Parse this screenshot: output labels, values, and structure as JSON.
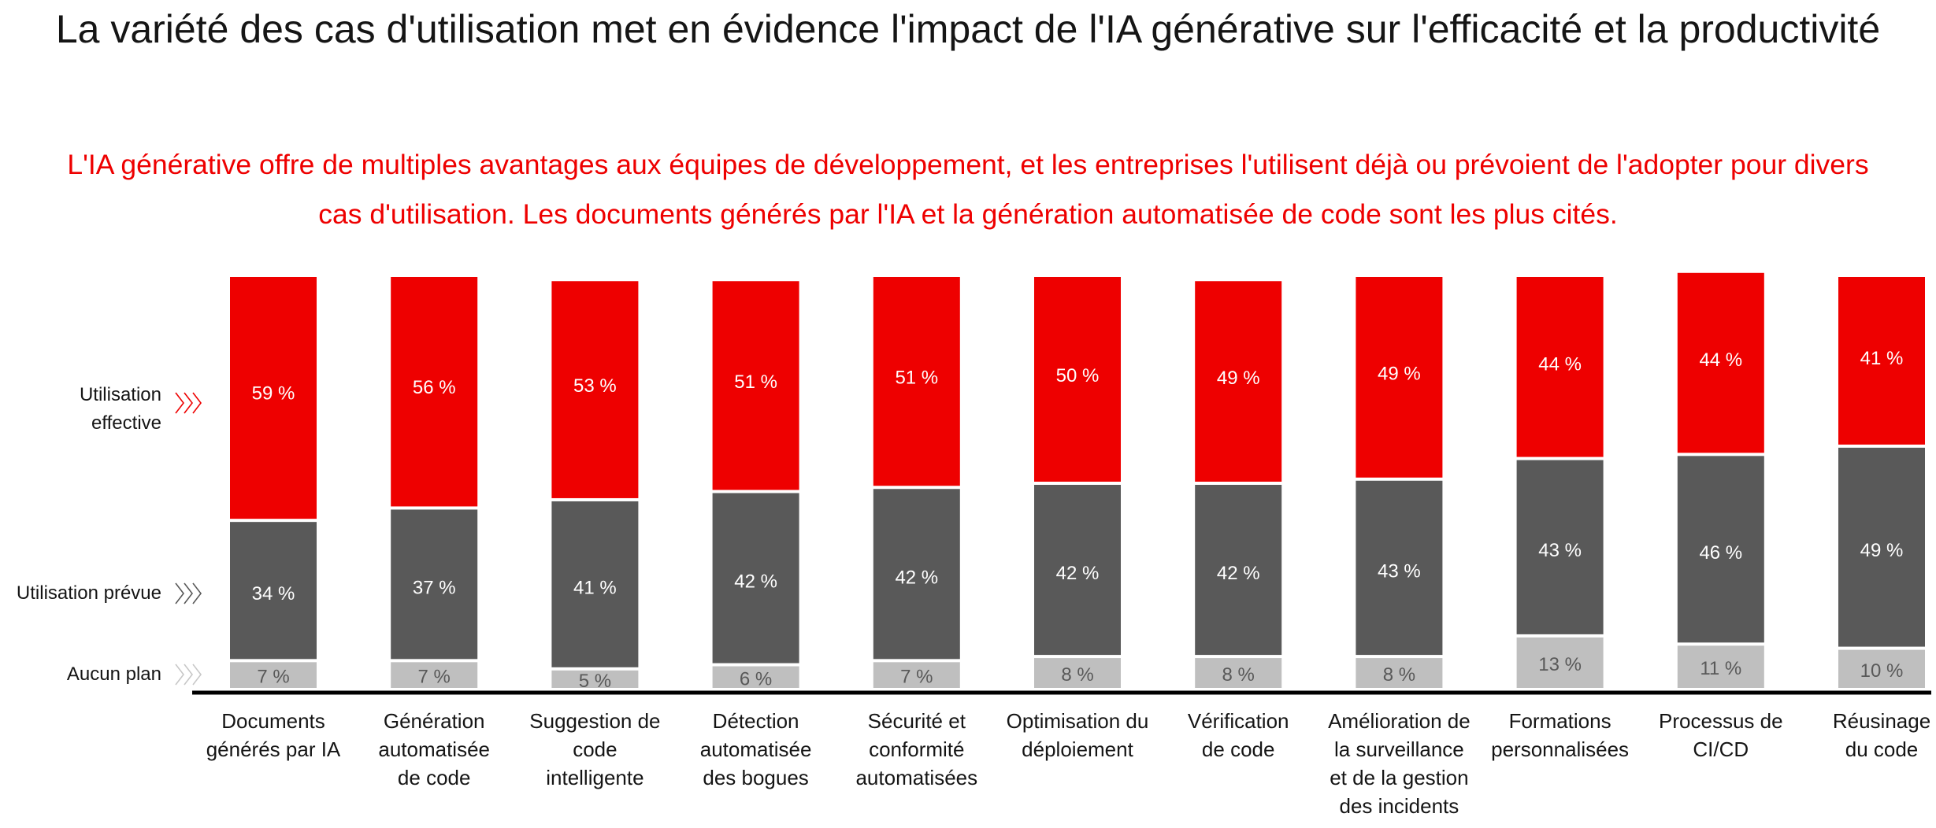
{
  "title": "La variété des cas d'utilisation met en évidence l'impact de l'IA générative sur l'efficacité et la productivité",
  "subtitle": "L'IA générative offre de multiples avantages aux équipes de développement, et les entreprises l'utilisent déjà ou prévoient de l'adopter pour divers cas d'utilisation. Les documents générés par l'IA et la génération automatisée de code sont les plus cités.",
  "colors": {
    "actual": "#ee0000",
    "planned": "#595959",
    "none": "#bfbfbf",
    "none_label": "#595959",
    "title": "#151515",
    "subtitle": "#ee0000"
  },
  "chart_data": {
    "type": "bar",
    "stacked": true,
    "title": "",
    "xlabel": "",
    "ylabel": "",
    "ylim": [
      0,
      100
    ],
    "unit": "%",
    "legend_placement": "left",
    "categories": [
      [
        "Documents",
        "générés par IA"
      ],
      [
        "Génération",
        "automatisée",
        "de code"
      ],
      [
        "Suggestion de",
        "code",
        "intelligente"
      ],
      [
        "Détection",
        "automatisée",
        "des bogues"
      ],
      [
        "Sécurité et",
        "conformité",
        "automatisées"
      ],
      [
        "Optimisation du",
        "déploiement"
      ],
      [
        "Vérification",
        "de code"
      ],
      [
        "Amélioration de",
        "la surveillance",
        "et de la gestion",
        "des incidents"
      ],
      [
        "Formations",
        "personnalisées"
      ],
      [
        "Processus de",
        "CI/CD"
      ],
      [
        "Réusinage",
        "du code"
      ]
    ],
    "series": [
      {
        "name": "Aucun plan",
        "key": "none",
        "values": [
          7,
          7,
          5,
          6,
          7,
          8,
          8,
          8,
          13,
          11,
          10
        ],
        "labels": [
          "7 %",
          "7 %",
          "5 %",
          "6 %",
          "7 %",
          "8 %",
          "8 %",
          "8 %",
          "13 %",
          "11 %",
          "10 %"
        ]
      },
      {
        "name": "Utilisation prévue",
        "key": "planned",
        "values": [
          34,
          37,
          41,
          42,
          42,
          42,
          42,
          43,
          43,
          46,
          49
        ],
        "labels": [
          "34 %",
          "37 %",
          "41 %",
          "42 %",
          "42 %",
          "42 %",
          "42 %",
          "43 %",
          "43 %",
          "46 %",
          "49 %"
        ]
      },
      {
        "name": "Utilisation effective",
        "key": "actual",
        "values": [
          59,
          56,
          53,
          51,
          51,
          50,
          49,
          49,
          44,
          44,
          41
        ],
        "labels": [
          "59 %",
          "56 %",
          "53 %",
          "51 %",
          "51 %",
          "50 %",
          "49 %",
          "49 %",
          "44 %",
          "44 %",
          "41 %"
        ]
      }
    ],
    "legend": [
      {
        "lines": [
          "Utilisation",
          "effective"
        ],
        "key": "actual"
      },
      {
        "lines": [
          "Utilisation prévue"
        ],
        "key": "planned"
      },
      {
        "lines": [
          "Aucun plan"
        ],
        "key": "none"
      }
    ]
  }
}
